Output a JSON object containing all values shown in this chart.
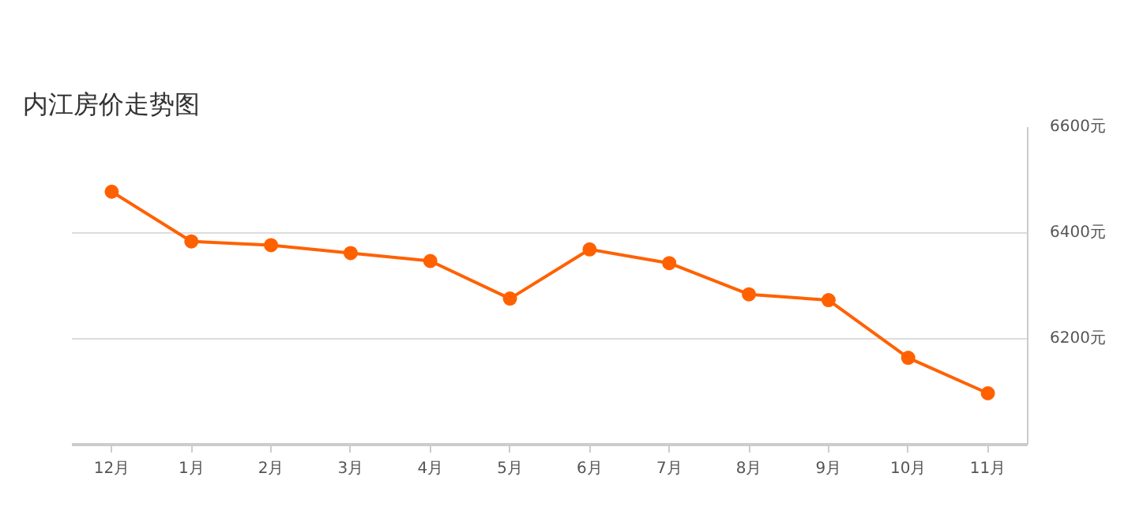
{
  "chart_data": {
    "type": "line",
    "title": "内江房价走势图",
    "categories": [
      "12月",
      "1月",
      "2月",
      "3月",
      "4月",
      "5月",
      "6月",
      "7月",
      "8月",
      "9月",
      "10月",
      "11月"
    ],
    "series": [
      {
        "color": "#ff6100",
        "values": [
          6478,
          6384,
          6377,
          6362,
          6347,
          6276,
          6369,
          6343,
          6284,
          6273,
          6164,
          6097
        ]
      }
    ],
    "ylim": [
      6000,
      6600
    ],
    "yticks": [
      {
        "value": 6200,
        "label": "6200元"
      },
      {
        "value": 6400,
        "label": "6400元"
      },
      {
        "value": 6600,
        "label": "6600元"
      }
    ],
    "grid": "y",
    "marker": "circle",
    "line_style": "solid"
  }
}
